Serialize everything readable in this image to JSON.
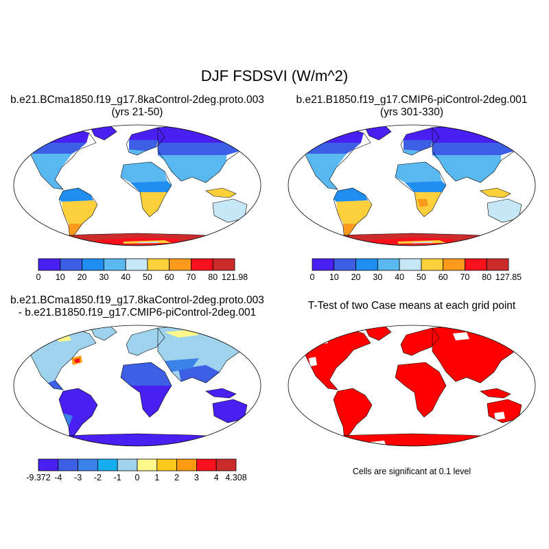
{
  "figure": {
    "title": "DJF FSDSVI (W/m^2)",
    "note": "Cells are significant at 0.1 level"
  },
  "panels": [
    {
      "title_line1": "b.e21.BCma1850.f19_g17.8kaControl-2deg.proto.003",
      "title_line2": "(yrs 21-50)",
      "colorbar": {
        "labels": [
          "0",
          "10",
          "20",
          "30",
          "40",
          "50",
          "60",
          "70",
          "80",
          "121.98"
        ],
        "colors": [
          "#4a20f2",
          "#3c5fe6",
          "#1f8ef0",
          "#5ab8f0",
          "#c5e7f6",
          "#fcd03a",
          "#fc9a1e",
          "#f8101c",
          "#cc2b2b"
        ]
      }
    },
    {
      "title_line1": "b.e21.B1850.f19_g17.CMIP6-piControl-2deg.001",
      "title_line2": "(yrs 301-330)",
      "colorbar": {
        "labels": [
          "0",
          "10",
          "20",
          "30",
          "40",
          "50",
          "60",
          "70",
          "80",
          "127.85"
        ],
        "colors": [
          "#4a20f2",
          "#3c5fe6",
          "#1f8ef0",
          "#5ab8f0",
          "#c5e7f6",
          "#fcd03a",
          "#fc9a1e",
          "#f8101c",
          "#cc2b2b"
        ]
      }
    },
    {
      "title_line1": "b.e21.BCma1850.f19_g17.8kaControl-2deg.proto.003",
      "title_line2": "- b.e21.B1850.f19_g17.CMIP6-piControl-2deg.001",
      "colorbar": {
        "labels": [
          "-9.372",
          "-4",
          "-3",
          "-2",
          "-1",
          "0",
          "1",
          "2",
          "3",
          "4",
          "4.308"
        ],
        "colors": [
          "#4a20f2",
          "#3c5fe6",
          "#3a82ea",
          "#16aef0",
          "#9fd2ec",
          "#fdf88a",
          "#fcca1c",
          "#fc9a10",
          "#f8101c",
          "#cc2b2b"
        ]
      }
    },
    {
      "title_line1": "T-Test of two Case means at each grid point",
      "title_line2": ""
    }
  ]
}
